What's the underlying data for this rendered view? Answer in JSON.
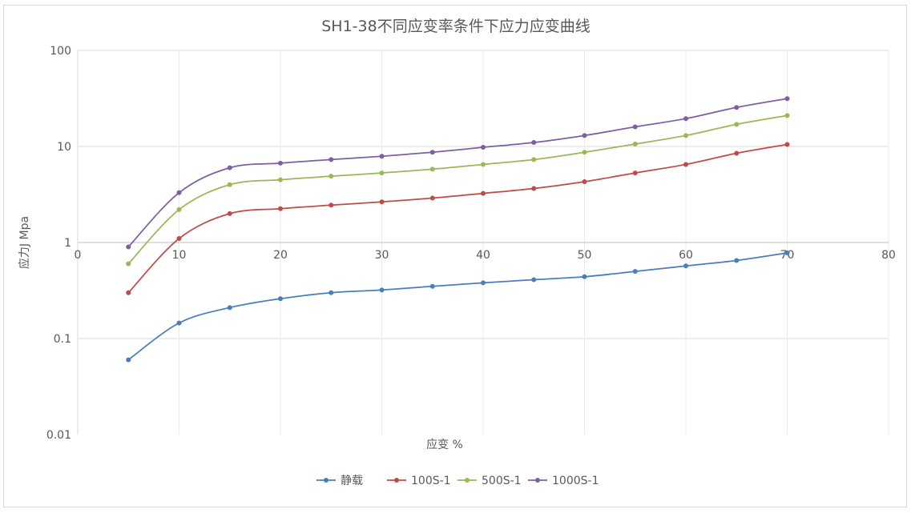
{
  "chart_data": {
    "type": "line",
    "title": "SH1-38不同应变率条件下应力应变曲线",
    "xlabel": "应变 %",
    "ylabel": "应力J Mpa",
    "y_scale": "log",
    "xlim": [
      0,
      80
    ],
    "ylim": [
      0.01,
      100
    ],
    "x_ticks": [
      "0",
      "10",
      "20",
      "30",
      "40",
      "50",
      "60",
      "70",
      "80"
    ],
    "y_ticks": [
      "100",
      "10",
      "1",
      "0.1",
      "0.01"
    ],
    "grid": true,
    "legend_position": "bottom",
    "x": [
      5,
      10,
      15,
      20,
      25,
      30,
      35,
      40,
      45,
      50,
      55,
      60,
      65,
      70
    ],
    "series": [
      {
        "name": "静载",
        "color": "#4a7ebb",
        "values": [
          0.06,
          0.145,
          0.21,
          0.26,
          0.3,
          0.32,
          0.35,
          0.38,
          0.41,
          0.44,
          0.5,
          0.57,
          0.65,
          0.78
        ]
      },
      {
        "name": "100S-1",
        "color": "#be4b48",
        "values": [
          0.3,
          1.1,
          2.0,
          2.25,
          2.45,
          2.65,
          2.9,
          3.25,
          3.65,
          4.3,
          5.3,
          6.5,
          8.5,
          10.5
        ]
      },
      {
        "name": "500S-1",
        "color": "#98b954",
        "values": [
          0.6,
          2.2,
          4.0,
          4.5,
          4.9,
          5.3,
          5.8,
          6.5,
          7.3,
          8.7,
          10.6,
          13.0,
          17.0,
          21.0
        ]
      },
      {
        "name": "1000S-1",
        "color": "#7d60a0",
        "values": [
          0.9,
          3.3,
          6.0,
          6.7,
          7.3,
          7.9,
          8.7,
          9.8,
          11.0,
          13.0,
          16.0,
          19.5,
          25.5,
          31.5
        ]
      }
    ]
  }
}
